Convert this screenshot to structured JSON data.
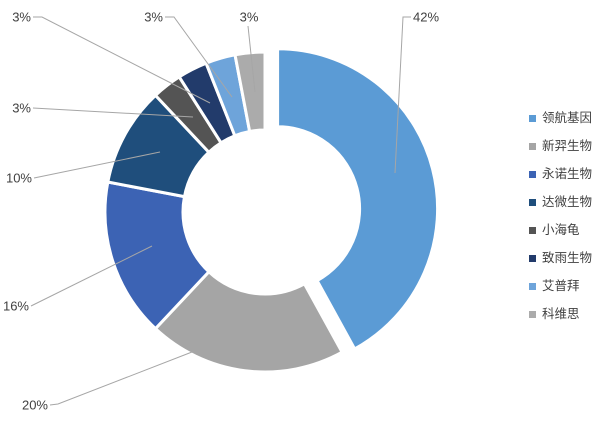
{
  "chart_data": {
    "type": "pie",
    "subtype": "donut",
    "categories": [
      "领航基因",
      "新羿生物",
      "永诺生物",
      "达微生物",
      "小海龟",
      "致雨生物",
      "艾普拜",
      "科维思"
    ],
    "values": [
      42,
      20,
      16,
      10,
      3,
      3,
      3,
      3
    ],
    "labels": [
      "42%",
      "20%",
      "16%",
      "10%",
      "3%",
      "3%",
      "3%",
      "3%"
    ],
    "unit": "%",
    "colors": [
      "#5B9BD5",
      "#A5A5A5",
      "#3C63B4",
      "#1F4E7C",
      "#545454",
      "#223B6B",
      "#6EA4DA",
      "#ABABAB"
    ],
    "exploded_slice": "领航基因",
    "donut_hole_ratio": 0.51,
    "legend_position": "right",
    "leader_line_color": "#A6A6A6",
    "label_text_color": "#404040",
    "slice_border_color": "#FFFFFF"
  },
  "legend": {
    "items": [
      {
        "label": "领航基因",
        "color": "#5B9BD5"
      },
      {
        "label": "新羿生物",
        "color": "#A5A5A5"
      },
      {
        "label": "永诺生物",
        "color": "#3C63B4"
      },
      {
        "label": "达微生物",
        "color": "#1F4E7C"
      },
      {
        "label": "小海龟",
        "color": "#545454"
      },
      {
        "label": "致雨生物",
        "color": "#223B6B"
      },
      {
        "label": "艾普拜",
        "color": "#6EA4DA"
      },
      {
        "label": "科维思",
        "color": "#ABABAB"
      }
    ]
  }
}
